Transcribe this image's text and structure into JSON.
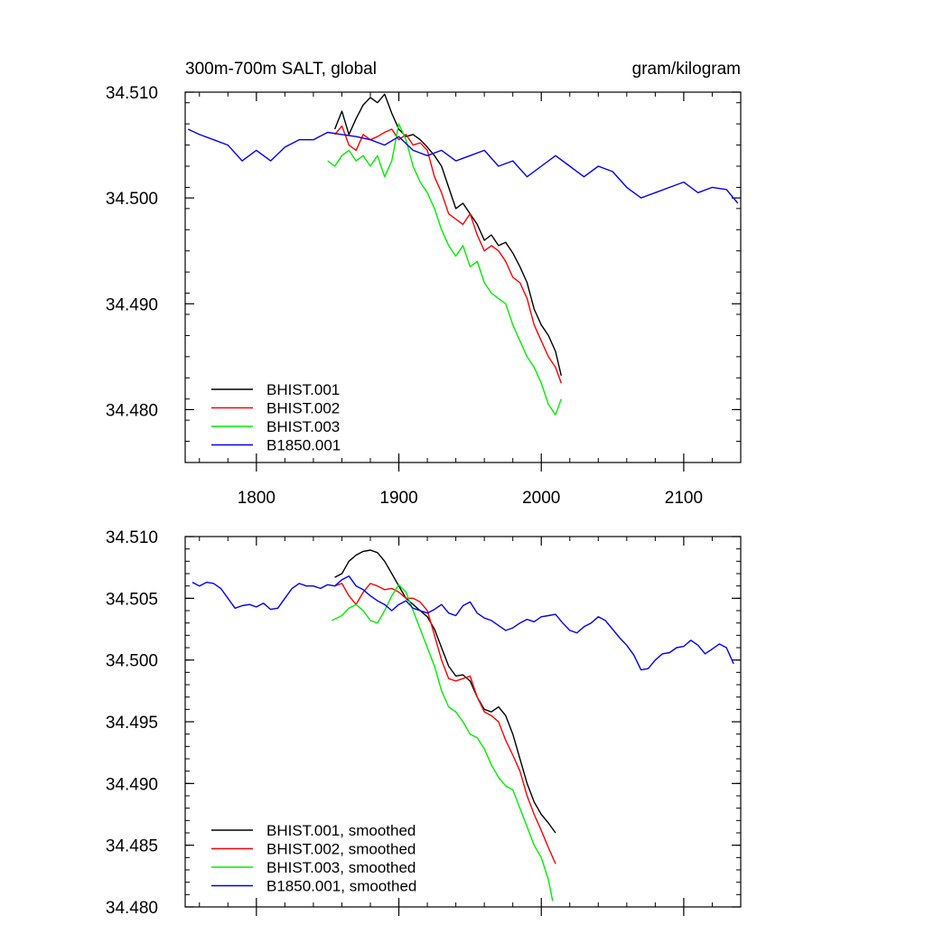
{
  "chart_data": [
    {
      "type": "line",
      "title": "300m-700m SALT, global",
      "units": "gram/kilogram",
      "xlim": [
        1750,
        2140
      ],
      "ylim": [
        34.475,
        34.51
      ],
      "xticks": [
        1800,
        1900,
        2000,
        2100
      ],
      "xtick_labels": [
        "1800",
        "1900",
        "2000",
        "2100"
      ],
      "yticks": [
        34.48,
        34.49,
        34.5,
        34.51
      ],
      "ytick_labels": [
        "34.480",
        "34.490",
        "34.500",
        "34.510"
      ],
      "legend_position": "bottom-left",
      "series": [
        {
          "name": "BHIST.001",
          "color": "#000000",
          "x": [
            1855,
            1860,
            1865,
            1870,
            1875,
            1880,
            1885,
            1890,
            1895,
            1900,
            1905,
            1910,
            1915,
            1920,
            1925,
            1930,
            1935,
            1940,
            1945,
            1950,
            1955,
            1960,
            1965,
            1970,
            1975,
            1980,
            1985,
            1990,
            1995,
            2000,
            2005,
            2010,
            2014
          ],
          "y": [
            34.5065,
            34.5082,
            34.506,
            34.5075,
            34.5088,
            34.5095,
            34.509,
            34.5098,
            34.508,
            34.5065,
            34.5058,
            34.506,
            34.5055,
            34.5048,
            34.504,
            34.503,
            34.501,
            34.499,
            34.4995,
            34.4985,
            34.4975,
            34.496,
            34.4965,
            34.4955,
            34.4958,
            34.4948,
            34.4935,
            34.492,
            34.4895,
            34.488,
            34.487,
            34.4855,
            34.4832
          ]
        },
        {
          "name": "BHIST.002",
          "color": "#ff0000",
          "x": [
            1855,
            1860,
            1865,
            1870,
            1875,
            1880,
            1885,
            1890,
            1895,
            1900,
            1905,
            1910,
            1915,
            1920,
            1925,
            1930,
            1935,
            1940,
            1945,
            1950,
            1955,
            1960,
            1965,
            1970,
            1975,
            1980,
            1985,
            1990,
            1995,
            2000,
            2005,
            2010,
            2014
          ],
          "y": [
            34.506,
            34.5068,
            34.505,
            34.5045,
            34.506,
            34.5055,
            34.5058,
            34.5062,
            34.5065,
            34.5055,
            34.506,
            34.505,
            34.5052,
            34.5045,
            34.502,
            34.5005,
            34.4985,
            34.498,
            34.4975,
            34.4985,
            34.4965,
            34.495,
            34.4955,
            34.495,
            34.494,
            34.4925,
            34.492,
            34.4905,
            34.488,
            34.4865,
            34.485,
            34.484,
            34.4825
          ]
        },
        {
          "name": "BHIST.003",
          "color": "#00ee00",
          "x": [
            1850,
            1855,
            1860,
            1865,
            1870,
            1875,
            1880,
            1885,
            1890,
            1895,
            1900,
            1905,
            1910,
            1915,
            1920,
            1925,
            1930,
            1935,
            1940,
            1945,
            1950,
            1955,
            1960,
            1965,
            1970,
            1975,
            1980,
            1985,
            1990,
            1995,
            2000,
            2005,
            2010,
            2014
          ],
          "y": [
            34.5035,
            34.503,
            34.504,
            34.5045,
            34.5035,
            34.504,
            34.503,
            34.504,
            34.502,
            34.5035,
            34.507,
            34.5055,
            34.503,
            34.5015,
            34.5005,
            34.499,
            34.497,
            34.4955,
            34.4945,
            34.4955,
            34.4935,
            34.494,
            34.492,
            34.491,
            34.4905,
            34.49,
            34.488,
            34.4865,
            34.485,
            34.484,
            34.4825,
            34.4805,
            34.4795,
            34.481
          ]
        },
        {
          "name": "B1850.001",
          "color": "#0000ee",
          "x": [
            1752,
            1760,
            1770,
            1780,
            1790,
            1800,
            1810,
            1820,
            1830,
            1840,
            1850,
            1860,
            1870,
            1880,
            1890,
            1900,
            1910,
            1920,
            1930,
            1940,
            1950,
            1960,
            1970,
            1980,
            1990,
            2000,
            2010,
            2020,
            2030,
            2040,
            2050,
            2060,
            2070,
            2080,
            2090,
            2100,
            2110,
            2120,
            2130,
            2138
          ],
          "y": [
            34.5065,
            34.506,
            34.5055,
            34.505,
            34.5035,
            34.5045,
            34.5035,
            34.5048,
            34.5055,
            34.5055,
            34.5062,
            34.506,
            34.5058,
            34.5055,
            34.505,
            34.5058,
            34.5045,
            34.504,
            34.5045,
            34.5035,
            34.504,
            34.5045,
            34.503,
            34.5035,
            34.502,
            34.503,
            34.504,
            34.503,
            34.502,
            34.503,
            34.5025,
            34.501,
            34.5,
            34.5005,
            34.501,
            34.5015,
            34.5005,
            34.501,
            34.5008,
            34.4995
          ]
        }
      ]
    },
    {
      "type": "line",
      "title": "",
      "xlim": [
        1750,
        2140
      ],
      "ylim": [
        34.48,
        34.51
      ],
      "xticks": [
        1800,
        1900,
        2000,
        2100
      ],
      "yticks": [
        34.48,
        34.485,
        34.49,
        34.495,
        34.5,
        34.505,
        34.51
      ],
      "ytick_labels": [
        "34.480",
        "34.485",
        "34.490",
        "34.495",
        "34.500",
        "34.505",
        "34.510"
      ],
      "legend_position": "bottom-left",
      "series": [
        {
          "name": "BHIST.001, smoothed",
          "color": "#000000",
          "x": [
            1855,
            1860,
            1865,
            1870,
            1875,
            1880,
            1885,
            1890,
            1895,
            1900,
            1905,
            1910,
            1915,
            1920,
            1925,
            1930,
            1935,
            1940,
            1945,
            1950,
            1955,
            1960,
            1965,
            1970,
            1975,
            1980,
            1985,
            1990,
            1995,
            2000,
            2005,
            2010
          ],
          "y": [
            34.5067,
            34.507,
            34.508,
            34.5085,
            34.5088,
            34.5089,
            34.5087,
            34.508,
            34.507,
            34.506,
            34.505,
            34.5045,
            34.504,
            34.5035,
            34.5025,
            34.501,
            34.4995,
            34.4987,
            34.4988,
            34.4983,
            34.497,
            34.496,
            34.4958,
            34.4962,
            34.4955,
            34.494,
            34.492,
            34.49,
            34.4885,
            34.4875,
            34.4868,
            34.486
          ]
        },
        {
          "name": "BHIST.002, smoothed",
          "color": "#ff0000",
          "x": [
            1855,
            1860,
            1865,
            1870,
            1875,
            1880,
            1885,
            1890,
            1895,
            1900,
            1905,
            1910,
            1915,
            1920,
            1925,
            1930,
            1935,
            1940,
            1945,
            1950,
            1955,
            1960,
            1965,
            1970,
            1975,
            1980,
            1985,
            1990,
            1995,
            2000,
            2005,
            2010
          ],
          "y": [
            34.506,
            34.5062,
            34.5052,
            34.5045,
            34.5055,
            34.5062,
            34.506,
            34.5057,
            34.5058,
            34.5055,
            34.505,
            34.505,
            34.5047,
            34.504,
            34.502,
            34.5,
            34.4985,
            34.4983,
            34.4985,
            34.4987,
            34.497,
            34.4958,
            34.4955,
            34.495,
            34.4935,
            34.4923,
            34.491,
            34.489,
            34.4875,
            34.4862,
            34.4848,
            34.4835
          ]
        },
        {
          "name": "BHIST.003, smoothed",
          "color": "#00ee00",
          "x": [
            1853,
            1860,
            1865,
            1870,
            1875,
            1880,
            1885,
            1890,
            1895,
            1900,
            1905,
            1910,
            1915,
            1920,
            1925,
            1930,
            1935,
            1940,
            1945,
            1950,
            1955,
            1960,
            1965,
            1970,
            1975,
            1980,
            1985,
            1990,
            1995,
            2000,
            2005,
            2008
          ],
          "y": [
            34.5032,
            34.5036,
            34.5042,
            34.5045,
            34.504,
            34.5032,
            34.503,
            34.504,
            34.5052,
            34.5061,
            34.5055,
            34.504,
            34.5025,
            34.501,
            34.4995,
            34.4975,
            34.4962,
            34.4958,
            34.495,
            34.494,
            34.4937,
            34.4928,
            34.4915,
            34.4905,
            34.4898,
            34.4895,
            34.488,
            34.4865,
            34.485,
            34.484,
            34.4822,
            34.4805
          ]
        },
        {
          "name": "B1850.001, smoothed",
          "color": "#0000ee",
          "x": [
            1755,
            1760,
            1765,
            1770,
            1775,
            1780,
            1785,
            1790,
            1795,
            1800,
            1805,
            1810,
            1815,
            1820,
            1825,
            1830,
            1835,
            1840,
            1845,
            1850,
            1855,
            1860,
            1865,
            1870,
            1875,
            1880,
            1885,
            1890,
            1895,
            1900,
            1905,
            1910,
            1915,
            1920,
            1925,
            1930,
            1935,
            1940,
            1945,
            1950,
            1955,
            1960,
            1965,
            1970,
            1975,
            1980,
            1985,
            1990,
            1995,
            2000,
            2005,
            2010,
            2015,
            2020,
            2025,
            2030,
            2035,
            2040,
            2045,
            2050,
            2055,
            2060,
            2065,
            2070,
            2075,
            2080,
            2085,
            2090,
            2095,
            2100,
            2105,
            2110,
            2115,
            2120,
            2125,
            2130,
            2135
          ],
          "y": [
            34.5063,
            34.506,
            34.5063,
            34.5062,
            34.5058,
            34.505,
            34.5042,
            34.5044,
            34.5045,
            34.5043,
            34.5046,
            34.5041,
            34.5042,
            34.505,
            34.5058,
            34.5062,
            34.506,
            34.506,
            34.5058,
            34.5061,
            34.506,
            34.5065,
            34.5068,
            34.506,
            34.5057,
            34.5052,
            34.5048,
            34.5045,
            34.504,
            34.5045,
            34.5048,
            34.5042,
            34.504,
            34.5038,
            34.5041,
            34.5045,
            34.5038,
            34.5036,
            34.5044,
            34.5047,
            34.5038,
            34.5034,
            34.5032,
            34.5028,
            34.5024,
            34.5026,
            34.503,
            34.5033,
            34.5031,
            34.5035,
            34.5036,
            34.5037,
            34.503,
            34.5024,
            34.5022,
            34.5027,
            34.503,
            34.5035,
            34.5032,
            34.5025,
            34.5018,
            34.5012,
            34.5004,
            34.4992,
            34.4993,
            34.5,
            34.5005,
            34.5006,
            34.501,
            34.5011,
            34.5016,
            34.5012,
            34.5005,
            34.5009,
            34.5013,
            34.501,
            34.4997
          ]
        }
      ]
    }
  ]
}
